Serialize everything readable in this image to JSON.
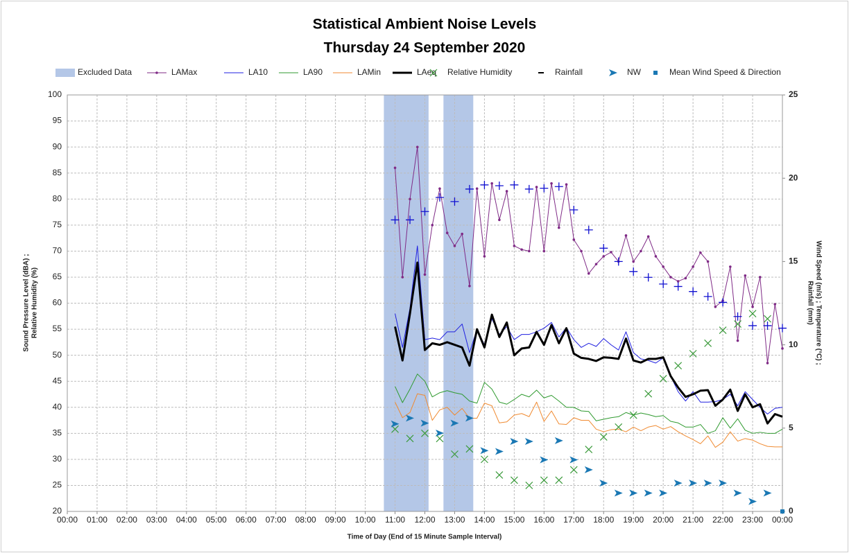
{
  "chart_data": {
    "type": "line",
    "title": [
      "Statistical Ambient Noise Levels",
      "Thursday 24 September 2020"
    ],
    "xlabel": "Time of Day (End of 15 Minute Sample Interval)",
    "ylabel": [
      "Sound Pressure Level (dBA) ;",
      "Relative Humidity (%)"
    ],
    "y2label": [
      "Wind Speed (m/s) ; Temperature (°C) ;",
      "Rainfall (mm)"
    ],
    "xlim": [
      0,
      24
    ],
    "xticks": [
      {
        "value": 0,
        "label": "00:00"
      },
      {
        "value": 1,
        "label": "01:00"
      },
      {
        "value": 2,
        "label": "02:00"
      },
      {
        "value": 3,
        "label": "03:00"
      },
      {
        "value": 4,
        "label": "04:00"
      },
      {
        "value": 5,
        "label": "05:00"
      },
      {
        "value": 6,
        "label": "06:00"
      },
      {
        "value": 7,
        "label": "07:00"
      },
      {
        "value": 8,
        "label": "08:00"
      },
      {
        "value": 9,
        "label": "09:00"
      },
      {
        "value": 10,
        "label": "10:00"
      },
      {
        "value": 11,
        "label": "11:00"
      },
      {
        "value": 12,
        "label": "12:00"
      },
      {
        "value": 13,
        "label": "13:00"
      },
      {
        "value": 14,
        "label": "14:00"
      },
      {
        "value": 15,
        "label": "15:00"
      },
      {
        "value": 16,
        "label": "16:00"
      },
      {
        "value": 17,
        "label": "17:00"
      },
      {
        "value": 18,
        "label": "18:00"
      },
      {
        "value": 19,
        "label": "19:00"
      },
      {
        "value": 20,
        "label": "20:00"
      },
      {
        "value": 21,
        "label": "21:00"
      },
      {
        "value": 22,
        "label": "22:00"
      },
      {
        "value": 23,
        "label": "23:00"
      },
      {
        "value": 24,
        "label": "00:00"
      }
    ],
    "ylim": [
      20,
      100
    ],
    "yticks": [
      20,
      25,
      30,
      35,
      40,
      45,
      50,
      55,
      60,
      65,
      70,
      75,
      80,
      85,
      90,
      95,
      100
    ],
    "y2lim": [
      0,
      25
    ],
    "y2ticks": [
      0,
      5,
      10,
      15,
      20,
      25
    ],
    "grid": true,
    "excluded": {
      "name": "Excluded Data",
      "color": "#b4c7e7",
      "ranges": [
        [
          10.625,
          12.125
        ],
        [
          12.625,
          13.625
        ]
      ]
    },
    "x": [
      11,
      11.25,
      11.5,
      11.75,
      12,
      12.25,
      12.5,
      12.75,
      13,
      13.25,
      13.5,
      13.75,
      14,
      14.25,
      14.5,
      14.75,
      15,
      15.25,
      15.5,
      15.75,
      16,
      16.25,
      16.5,
      16.75,
      17,
      17.25,
      17.5,
      17.75,
      18,
      18.25,
      18.5,
      18.75,
      19,
      19.25,
      19.5,
      19.75,
      20,
      20.25,
      20.5,
      20.75,
      21,
      21.25,
      21.5,
      21.75,
      22,
      22.25,
      22.5,
      22.75,
      23,
      23.25,
      23.5,
      23.75,
      24
    ],
    "series": [
      {
        "name": "LAMax",
        "color": "#7f2a86",
        "style": "line-dot",
        "values": [
          86,
          65,
          80,
          90,
          65.5,
          75,
          82,
          73.5,
          71,
          73.3,
          63.3,
          82,
          69,
          83,
          76,
          81.5,
          71,
          70.3,
          70,
          82.3,
          70,
          83,
          74.5,
          82.8,
          72.2,
          70,
          65.7,
          67.5,
          69,
          69.8,
          68,
          73,
          68,
          70,
          72.8,
          69,
          67,
          65,
          64.2,
          64.8,
          67,
          69.7,
          68,
          59.3,
          60.5,
          67,
          52.8,
          65.3,
          59.3,
          65,
          48.5,
          59.8,
          51.3
        ]
      },
      {
        "name": "LA10",
        "color": "#1f1fe0",
        "style": "line",
        "values": [
          58,
          51.5,
          59,
          71,
          53,
          53.3,
          53,
          54.5,
          54.5,
          56,
          50.5,
          55,
          52,
          57,
          54,
          55.5,
          53,
          54,
          54,
          54.5,
          55.2,
          56.3,
          53.5,
          55.3,
          53,
          51.5,
          52.3,
          51.7,
          53.2,
          52,
          51,
          54.5,
          50.5,
          49.3,
          49,
          48.5,
          49.5,
          46,
          43,
          41.2,
          43,
          41,
          41,
          41.1,
          41.5,
          42.5,
          40.3,
          43,
          41.5,
          40,
          38.7,
          39.8,
          40
        ]
      },
      {
        "name": "LA90",
        "color": "#2f9a2f",
        "style": "line",
        "values": [
          44,
          40.9,
          43.5,
          46.4,
          45,
          42,
          42.8,
          43.2,
          42.8,
          42.5,
          41.2,
          40.8,
          44.8,
          43.5,
          41,
          40.6,
          41.5,
          42.5,
          42,
          43.3,
          41.8,
          42.3,
          41.2,
          40,
          40,
          39.3,
          39.2,
          37.4,
          37.7,
          38,
          38.2,
          39,
          38.5,
          38.9,
          38.6,
          38.2,
          38.4,
          37.3,
          37,
          36.2,
          36.2,
          36.7,
          35,
          35.5,
          38,
          36,
          37.8,
          35.6,
          35,
          35.2,
          35,
          35,
          35.8
        ]
      },
      {
        "name": "LAMin",
        "color": "#f08a30",
        "style": "line",
        "values": [
          41,
          38,
          39,
          42.6,
          42.3,
          37.5,
          39.5,
          40,
          38.5,
          39.8,
          37.9,
          37.9,
          40.8,
          40.3,
          37,
          37.2,
          38.5,
          38.8,
          38.2,
          41,
          37.3,
          39.3,
          36.8,
          36.7,
          38,
          37.5,
          37.5,
          35.8,
          35.3,
          35.7,
          35.8,
          35.3,
          36.2,
          35.5,
          36.2,
          36.5,
          35.8,
          36.3,
          35.3,
          34.5,
          33.8,
          33,
          34.5,
          32.3,
          33.3,
          35.3,
          33.5,
          34,
          33.7,
          33,
          32.5,
          32.4,
          32.4
        ]
      },
      {
        "name": "LAeq",
        "color": "#000000",
        "style": "thick-line",
        "values": [
          55.5,
          49,
          58,
          67.8,
          51,
          52.3,
          52,
          52.5,
          52,
          51.5,
          48,
          55,
          51.5,
          57.8,
          53.5,
          56.3,
          50,
          51.3,
          51.5,
          54.5,
          52,
          55.8,
          52.3,
          55.2,
          50.3,
          49.5,
          49.3,
          48.9,
          49.6,
          49.5,
          49.3,
          53.2,
          49,
          48.6,
          49.3,
          49.3,
          49.6,
          46,
          43.8,
          42,
          42.5,
          43.2,
          43.3,
          40.3,
          41.5,
          43.4,
          39.3,
          42.5,
          40,
          40.6,
          36.9,
          38.7,
          38.2
        ]
      },
      {
        "name": "Relative Humidity",
        "color": "#3a9a3a",
        "style": "x",
        "values": [
          35.8,
          null,
          34,
          null,
          35,
          null,
          34,
          null,
          31,
          null,
          32,
          null,
          30,
          null,
          27,
          null,
          26,
          null,
          25,
          null,
          26,
          null,
          26,
          null,
          28,
          null,
          31.9,
          null,
          34.3,
          null,
          36.2,
          null,
          38.5,
          null,
          42.6,
          null,
          45.5,
          null,
          48,
          null,
          50.3,
          null,
          52.3,
          null,
          54.8,
          null,
          56,
          null,
          58,
          null,
          57,
          null,
          null
        ]
      },
      {
        "name": "Rainfall",
        "color": "#000000",
        "style": "dash",
        "axis": "y2",
        "values": [
          null,
          null,
          null,
          null,
          null,
          null,
          null,
          null,
          null,
          null,
          null,
          null,
          null,
          null,
          null,
          null,
          null,
          null,
          null,
          null,
          null,
          null,
          null,
          null,
          null,
          null,
          null,
          null,
          null,
          null,
          null,
          null,
          null,
          null,
          null,
          null,
          null,
          null,
          null,
          null,
          null,
          null,
          null,
          null,
          null,
          null,
          null,
          null,
          null,
          null,
          null,
          null,
          null
        ]
      },
      {
        "name": "NW",
        "color": "#1a78b4",
        "style": "arrow",
        "axis": "y2",
        "values": [
          5.25,
          null,
          5.6,
          null,
          5.3,
          null,
          4.7,
          null,
          5.3,
          null,
          5.6,
          null,
          3.65,
          null,
          3.6,
          null,
          4.2,
          null,
          4.2,
          null,
          3.1,
          null,
          4.25,
          null,
          3.1,
          null,
          2.5,
          null,
          1.7,
          null,
          1.1,
          null,
          1.1,
          null,
          1.1,
          null,
          1.1,
          null,
          1.7,
          null,
          1.7,
          null,
          1.7,
          null,
          1.7,
          null,
          1.1,
          null,
          0.6,
          null,
          1.1,
          null,
          null
        ]
      },
      {
        "name": "Mean Wind Speed & Direction",
        "color": "#1a78b4",
        "style": "square",
        "axis": "y2",
        "values": [
          null,
          null,
          null,
          null,
          null,
          null,
          null,
          null,
          null,
          null,
          null,
          null,
          null,
          null,
          null,
          null,
          null,
          null,
          null,
          null,
          null,
          null,
          null,
          null,
          null,
          null,
          null,
          null,
          null,
          null,
          null,
          null,
          null,
          null,
          null,
          null,
          null,
          null,
          null,
          null,
          null,
          null,
          null,
          null,
          null,
          null,
          null,
          null,
          null,
          null,
          null,
          null,
          0
        ]
      },
      {
        "color": "#1010d0",
        "style": "plus",
        "axis": "y2",
        "values": [
          17.5,
          null,
          17.5,
          null,
          18.0,
          null,
          18.85,
          null,
          18.6,
          null,
          19.35,
          null,
          19.6,
          null,
          19.55,
          null,
          19.6,
          null,
          19.35,
          null,
          19.4,
          null,
          19.5,
          null,
          18.1,
          null,
          16.9,
          null,
          15.8,
          null,
          15.0,
          null,
          14.4,
          null,
          14.05,
          null,
          13.65,
          null,
          13.5,
          null,
          13.2,
          null,
          12.9,
          null,
          12.55,
          null,
          11.7,
          null,
          11.15,
          null,
          11.15,
          null,
          11.0
        ]
      }
    ]
  }
}
